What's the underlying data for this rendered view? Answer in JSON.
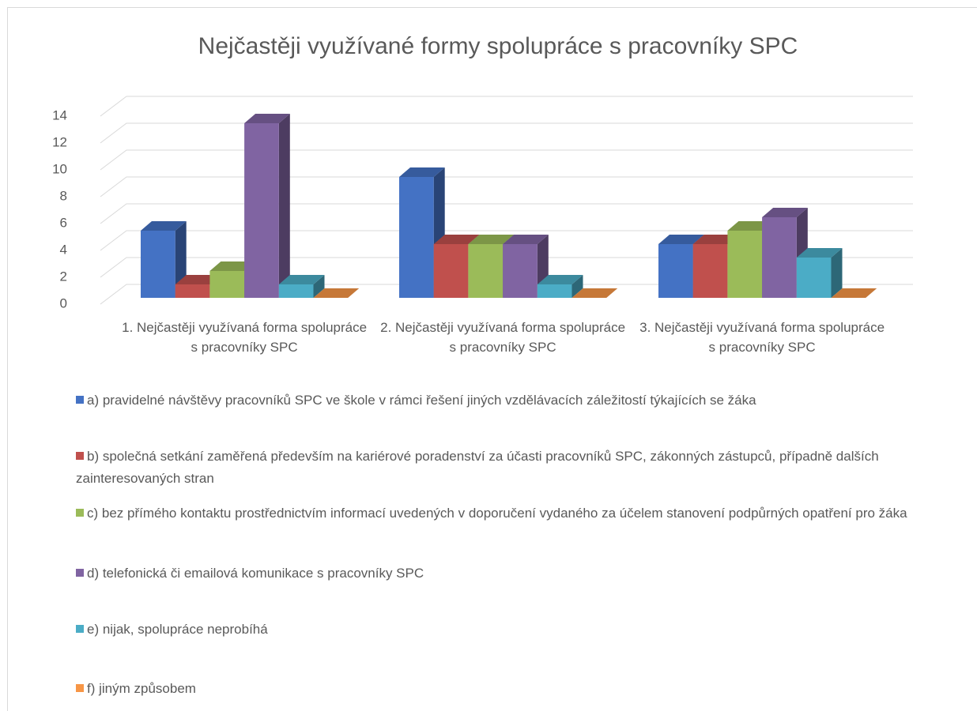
{
  "chart_data": {
    "type": "bar3d",
    "title": "Nejčastěji využívané formy spolupráce s pracovníky SPC",
    "categories": [
      "1. Nejčastěji využívaná forma spolupráce s pracovníky SPC",
      "2. Nejčastěji využívaná forma spolupráce s pracovníky SPC",
      "3. Nejčastěji využívaná forma spolupráce s pracovníky SPC"
    ],
    "series": [
      {
        "name": "a) pravidelné návštěvy pracovníků SPC ve škole v rámci řešení jiných vzdělávacích záležitostí týkajících se žáka",
        "color": "#4472c4",
        "values": [
          5,
          9,
          4
        ]
      },
      {
        "name": "b) společná setkání zaměřená především na kariérové poradenství za účasti pracovníků SPC, zákonných zástupců, případně dalších zainteresovaných stran",
        "color": "#c0504d",
        "values": [
          1,
          4,
          4
        ]
      },
      {
        "name": "c) bez přímého kontaktu prostřednictvím informací uvedených v doporučení vydaného za účelem stanovení podpůrných opatření pro žáka",
        "color": "#9bbb59",
        "values": [
          2,
          4,
          5
        ]
      },
      {
        "name": "d) telefonická či emailová komunikace s pracovníky SPC",
        "color": "#8064a2",
        "values": [
          13,
          4,
          6
        ]
      },
      {
        "name": "e) nijak, spolupráce neprobíhá",
        "color": "#4bacc6",
        "values": [
          1,
          1,
          3
        ]
      },
      {
        "name": "f) jiným způsobem",
        "color": "#f79646",
        "values": [
          0,
          0,
          0
        ]
      }
    ],
    "ylim": [
      0,
      14
    ],
    "yticks": [
      0,
      2,
      4,
      6,
      8,
      10,
      12,
      14
    ],
    "grid": true
  }
}
